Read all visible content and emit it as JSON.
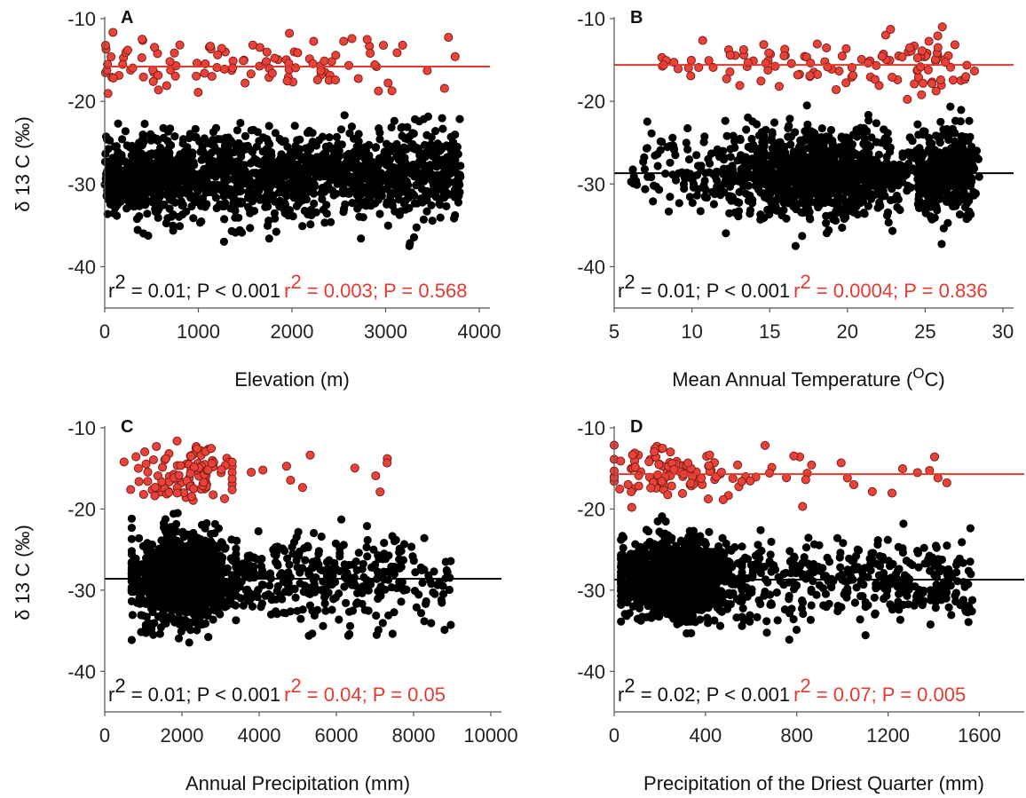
{
  "colors": {
    "c4": "#e8423a",
    "c3": "#000000",
    "axis": "#555555",
    "red_text": "#e53a2f"
  },
  "chart_data": [
    {
      "type": "scatter",
      "panel_label": "A",
      "xlabel": "Elevation (m)",
      "ylabel": "δ 13 C (‰)",
      "xlim": [
        0,
        4000
      ],
      "ylim": [
        -45,
        -10
      ],
      "xticks": [
        0,
        1000,
        2000,
        3000,
        4000
      ],
      "yticks": [
        -10,
        -20,
        -30,
        -40
      ],
      "stats_black": "= 0.01; P < 0.001",
      "stats_red": "= 0.003; P = 0.568",
      "reference_lines": {
        "C4": -15.8
      },
      "series": [
        {
          "color": "red",
          "values": "C4",
          "x_range": [
            0,
            3800
          ],
          "y_mean": -15.5,
          "y_sd": 1.6,
          "n": 110
        },
        {
          "color": "black",
          "values": "C3",
          "x_range": [
            0,
            3800
          ],
          "y_mean": -28.8,
          "y_sd": 2.6,
          "n": 1500
        }
      ]
    },
    {
      "type": "scatter",
      "panel_label": "B",
      "xlabel": "Mean Annual Temperature (",
      "xlabel_sup": "O",
      "xlabel_tail": "C)",
      "ylabel": "",
      "xlim": [
        5,
        30
      ],
      "ylim": [
        -45,
        -10
      ],
      "xticks": [
        5,
        10,
        15,
        20,
        25,
        30
      ],
      "yticks": [
        -10,
        -20,
        -30,
        -40
      ],
      "stats_black": "= 0.01; P < 0.001",
      "stats_red": "= 0.0004; P = 0.836",
      "reference_lines": {
        "C4": -15.6,
        "C3": -28.7
      },
      "series": [
        {
          "color": "red",
          "values": "C4",
          "x_range": [
            8,
            28.5
          ],
          "y_mean": -15.6,
          "y_sd": 1.7,
          "n": 120
        },
        {
          "color": "black",
          "values": "C3",
          "x_range": [
            6,
            28.5
          ],
          "y_mean": -28.7,
          "y_sd": 2.6,
          "n": 1500
        }
      ]
    },
    {
      "type": "scatter",
      "panel_label": "C",
      "xlabel": "Annual Precipitation (mm)",
      "ylabel": "δ 13 C (‰)",
      "xlim": [
        0,
        10000
      ],
      "ylim": [
        -45,
        -10
      ],
      "xticks": [
        0,
        2000,
        4000,
        6000,
        8000,
        10000
      ],
      "yticks": [
        -10,
        -20,
        -30,
        -40
      ],
      "stats_black": "= 0.01; P < 0.001",
      "stats_red": "= 0.04; P = 0.05",
      "reference_lines": {
        "C3": -28.6
      },
      "series": [
        {
          "color": "red",
          "values": "C4",
          "x_range": [
            500,
            7600
          ],
          "y_mean": -15.5,
          "y_sd": 1.7,
          "n": 120
        },
        {
          "color": "black",
          "values": "C3",
          "x_range": [
            500,
            9000
          ],
          "y_mean": -28.6,
          "y_sd": 2.5,
          "n": 1500
        }
      ]
    },
    {
      "type": "scatter",
      "panel_label": "D",
      "xlabel": "Precipitation of the Driest Quarter (mm)",
      "ylabel": "",
      "xlim": [
        0,
        1750
      ],
      "ylim": [
        -45,
        -10
      ],
      "xticks": [
        0,
        400,
        800,
        1200,
        1600
      ],
      "yticks": [
        -10,
        -20,
        -30,
        -40
      ],
      "stats_black": "= 0.02; P < 0.001",
      "stats_red": "= 0.07; P = 0.005",
      "reference_lines": {
        "C4": -15.7,
        "C3": -28.7
      },
      "series": [
        {
          "color": "red",
          "values": "C4",
          "x_range": [
            0,
            1460
          ],
          "y_mean": -15.5,
          "y_sd": 1.6,
          "n": 120
        },
        {
          "color": "black",
          "values": "C3",
          "x_range": [
            0,
            1570
          ],
          "y_mean": -28.6,
          "y_sd": 2.5,
          "n": 1500
        }
      ]
    }
  ]
}
